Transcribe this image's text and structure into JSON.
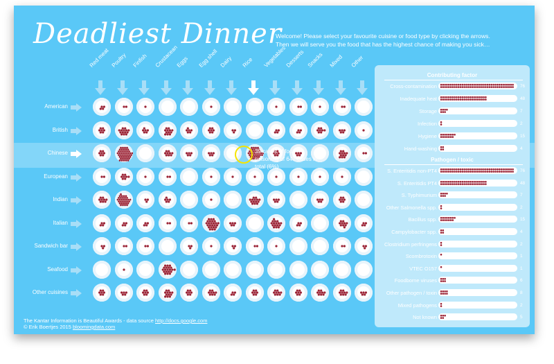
{
  "title": "Deadliest Dinner",
  "welcome": "Welcome! Please select your favourite cuisine or food type by clicking the arrows. Then we will serve you the food that has the highest chance of making you sick…",
  "colors": {
    "background": "#5ac8f7",
    "dot": "#9b2335",
    "plate": "#ffffff",
    "panel": "#bfe9fb",
    "highlight": "#f5e400"
  },
  "icons": {
    "column_arrow": "arrow-down-icon",
    "row_arrow": "arrow-right-icon"
  },
  "columns": [
    "Red meat",
    "Poultry",
    "Finfish",
    "Crustacean",
    "Eggs",
    "Egg shell",
    "Dairy",
    "Rice",
    "Vegetables",
    "Desserts",
    "Snacks",
    "Mixed",
    "Other"
  ],
  "selected_column": 7,
  "selected_row": 2,
  "rows": [
    {
      "label": "American",
      "dots": [
        4,
        2,
        1,
        0,
        0,
        1,
        0,
        0,
        1,
        2,
        1,
        2,
        0
      ]
    },
    {
      "label": "British",
      "dots": [
        7,
        14,
        6,
        12,
        6,
        7,
        3,
        0,
        4,
        4,
        8,
        5,
        1
      ]
    },
    {
      "label": "Chinese",
      "dots": [
        7,
        46,
        0,
        9,
        5,
        5,
        0,
        39,
        7,
        5,
        0,
        12,
        2
      ]
    },
    {
      "label": "European",
      "dots": [
        2,
        8,
        1,
        2,
        0,
        1,
        1,
        1,
        1,
        1,
        1,
        1,
        0
      ]
    },
    {
      "label": "Indian",
      "dots": [
        9,
        32,
        3,
        6,
        0,
        1,
        0,
        14,
        5,
        0,
        5,
        7,
        0
      ]
    },
    {
      "label": "Italian",
      "dots": [
        4,
        4,
        4,
        2,
        2,
        25,
        5,
        0,
        16,
        4,
        0,
        10,
        4
      ]
    },
    {
      "label": "Sandwich bar",
      "dots": [
        3,
        2,
        2,
        0,
        3,
        1,
        3,
        2,
        1,
        0,
        0,
        2,
        3
      ]
    },
    {
      "label": "Seafood",
      "dots": [
        0,
        1,
        0,
        20,
        0,
        0,
        0,
        0,
        0,
        0,
        0,
        0,
        0
      ]
    },
    {
      "label": "Other cuisines",
      "dots": [
        7,
        5,
        7,
        12,
        7,
        9,
        4,
        7,
        9,
        7,
        9,
        9,
        5
      ]
    }
  ],
  "tooltip": "39 cases of food poisoning of 647 cases in total (6%)",
  "panel": {
    "contributing_title": "Contributing factor",
    "contributing": [
      {
        "label": "Cross-contamination",
        "value": 76
      },
      {
        "label": "Inadequate heat",
        "value": 48
      },
      {
        "label": "Storage",
        "value": 7
      },
      {
        "label": "Infection",
        "value": 2
      },
      {
        "label": "Hygiene",
        "value": 15
      },
      {
        "label": "Hand-washing",
        "value": 4
      }
    ],
    "pathogen_title": "Pathogen / toxic",
    "pathogen": [
      {
        "label": "S. Enteritidis non-PT4",
        "value": 76
      },
      {
        "label": "S. Enteritidis PT4",
        "value": 48
      },
      {
        "label": "S. Typhimurium",
        "value": 7
      },
      {
        "label": "Other Salmonella spp.",
        "value": 2
      },
      {
        "label": "Bacillus spp.",
        "value": 15
      },
      {
        "label": "Campylobacter spp.",
        "value": 4
      },
      {
        "label": "Clostridium perfringens",
        "value": 2
      },
      {
        "label": "Scombrotoxin",
        "value": 1
      },
      {
        "label": "VTEC O157",
        "value": 1
      },
      {
        "label": "Foodborne viruses",
        "value": 6
      },
      {
        "label": "Other pathogen / toxin",
        "value": 8
      },
      {
        "label": "Mixed pathogens",
        "value": 2
      },
      {
        "label": "Not known",
        "value": 5
      }
    ]
  },
  "footer": {
    "line1": "The Kantar Information is Beautiful Awards - data source",
    "link1": "http://docs.google.com",
    "line2": "© Erik Boertjes 2015",
    "link2": "bloomingdata.com"
  }
}
